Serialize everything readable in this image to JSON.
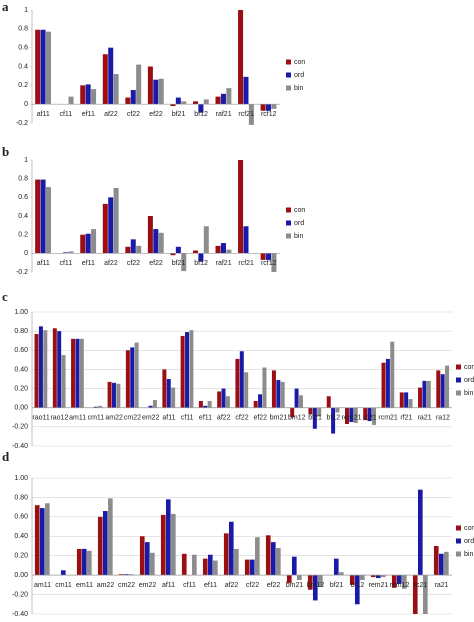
{
  "chart_data": [
    {
      "type": "bar",
      "label": "a",
      "categories": [
        "af11",
        "cf11",
        "ef11",
        "af22",
        "cf22",
        "ef22",
        "bf21",
        "bf12",
        "raf21",
        "rcf21",
        "rcf12"
      ],
      "series": [
        {
          "name": "con",
          "color": "#9b0f14",
          "values": [
            0.79,
            0,
            0.2,
            0.53,
            0.07,
            0.4,
            -0.02,
            0.03,
            0.08,
            1.0,
            -0.07
          ]
        },
        {
          "name": "ord",
          "color": "#1a1aa8",
          "values": [
            0.79,
            0,
            0.21,
            0.6,
            0.15,
            0.26,
            0.07,
            -0.09,
            0.11,
            0.29,
            -0.07
          ]
        },
        {
          "name": "bin",
          "color": "#8c8c8c",
          "values": [
            0.77,
            0.08,
            0.16,
            0.32,
            0.42,
            0.27,
            0.03,
            0.05,
            0.17,
            -0.22,
            -0.05
          ]
        }
      ],
      "ylim": [
        -0.2,
        1
      ],
      "yticks": [
        -0.2,
        0,
        0.2,
        0.4,
        0.6,
        0.8,
        1
      ],
      "grid": false
    },
    {
      "type": "bar",
      "label": "b",
      "categories": [
        "af11",
        "cf11",
        "ef11",
        "af22",
        "cf22",
        "ef22",
        "bf21",
        "bf12",
        "raf21",
        "rcf21",
        "rcf12"
      ],
      "series": [
        {
          "name": "con",
          "color": "#9b0f14",
          "values": [
            0.79,
            0,
            0.2,
            0.53,
            0.07,
            0.4,
            -0.02,
            0.03,
            0.08,
            1.0,
            -0.07
          ]
        },
        {
          "name": "ord",
          "color": "#1a1aa8",
          "values": [
            0.79,
            0.01,
            0.21,
            0.6,
            0.15,
            0.26,
            0.07,
            -0.09,
            0.11,
            0.29,
            -0.07
          ]
        },
        {
          "name": "bin",
          "color": "#8c8c8c",
          "values": [
            0.71,
            0.02,
            0.26,
            0.7,
            0.08,
            0.22,
            -0.19,
            0.29,
            0.04,
            0,
            -0.2
          ]
        }
      ],
      "ylim": [
        -0.2,
        1
      ],
      "yticks": [
        -0.2,
        0,
        0.2,
        0.4,
        0.6,
        0.8,
        1
      ],
      "grid": false
    },
    {
      "type": "bar",
      "label": "c",
      "categories": [
        "rao11",
        "rao12",
        "am11",
        "cm11",
        "am22",
        "cm22",
        "em22",
        "af11",
        "cf11",
        "ef11",
        "af22",
        "cf22",
        "ef22",
        "bm21",
        "bm12",
        "bf21",
        "bf12",
        "rem21",
        "rc21",
        "rcm21",
        "rf21",
        "ra21",
        "ra12"
      ],
      "series": [
        {
          "name": "con",
          "color": "#9b0f14",
          "values": [
            0.77,
            0.83,
            0.72,
            0,
            0.27,
            0.6,
            0,
            0.4,
            0.75,
            0.07,
            0.17,
            0.51,
            0.07,
            0.39,
            -0.1,
            -0.07,
            0.12,
            -0.17,
            -0.13,
            0.47,
            0.16,
            0.21,
            0.39
          ]
        },
        {
          "name": "ord",
          "color": "#1a1aa8",
          "values": [
            0.85,
            0.8,
            0.72,
            0.01,
            0.26,
            0.63,
            0.02,
            0.3,
            0.79,
            0.02,
            0.2,
            0.59,
            0.14,
            0.29,
            0.2,
            -0.22,
            -0.27,
            -0.15,
            -0.14,
            0.51,
            0.16,
            0.28,
            0.35
          ]
        },
        {
          "name": "bin",
          "color": "#8c8c8c",
          "values": [
            0.81,
            0.55,
            0.72,
            0.02,
            0.25,
            0.68,
            0.08,
            0.21,
            0.81,
            0.07,
            0.12,
            0.37,
            0.42,
            0.27,
            0.13,
            -0.09,
            -0.05,
            -0.16,
            -0.18,
            0.69,
            0.09,
            0.28,
            0.44
          ]
        }
      ],
      "ylim": [
        -0.4,
        1
      ],
      "yticks": [
        {
          "value": -0.4,
          "label": "-0.40"
        },
        {
          "value": -0.2,
          "label": "-0.20"
        },
        {
          "value": 0,
          "label": "0.00"
        },
        {
          "value": 0.2,
          "label": "0.20"
        },
        {
          "value": 0.4,
          "label": "0.40"
        },
        {
          "value": 0.6,
          "label": "0.60"
        },
        {
          "value": 0.8,
          "label": "0.80"
        },
        {
          "value": 1,
          "label": "1.00"
        }
      ],
      "grid": true
    },
    {
      "type": "bar",
      "label": "d",
      "categories": [
        "am11",
        "cm11",
        "em11",
        "am22",
        "cm22",
        "em22",
        "af11",
        "cf11",
        "ef11",
        "af22",
        "cf22",
        "ef22",
        "bm21",
        "bm12",
        "bf21",
        "bf12",
        "rem21",
        "rem12",
        "rc21",
        "ra21"
      ],
      "series": [
        {
          "name": "con",
          "color": "#9b0f14",
          "values": [
            0.72,
            0,
            0.27,
            0.6,
            0.01,
            0.4,
            0.62,
            0.22,
            0.17,
            0.43,
            0.16,
            0.41,
            -0.08,
            -0.15,
            0,
            -0.1,
            -0.02,
            -0.13,
            -0.4,
            0.3
          ]
        },
        {
          "name": "ord",
          "color": "#1a1aa8",
          "values": [
            0.69,
            0.05,
            0.27,
            0.66,
            0.01,
            0.34,
            0.78,
            0,
            0.21,
            0.55,
            0.16,
            0.34,
            0.19,
            -0.26,
            0.17,
            -0.3,
            -0.03,
            -0.09,
            0.88,
            0.22
          ]
        },
        {
          "name": "bin",
          "color": "#8c8c8c",
          "values": [
            0.74,
            0,
            0.25,
            0.79,
            0.01,
            0.23,
            0.63,
            0.21,
            0.15,
            0.27,
            0.39,
            0.28,
            -0.05,
            -0.12,
            0.03,
            -0.05,
            -0.02,
            -0.14,
            -0.4,
            0.24
          ]
        }
      ],
      "ylim": [
        -0.4,
        1
      ],
      "yticks": [
        {
          "value": -0.4,
          "label": "-0.40"
        },
        {
          "value": -0.2,
          "label": "-0.20"
        },
        {
          "value": 0,
          "label": "0.00"
        },
        {
          "value": 0.2,
          "label": "0.20"
        },
        {
          "value": 0.4,
          "label": "0.40"
        },
        {
          "value": 0.6,
          "label": "0.60"
        },
        {
          "value": 0.8,
          "label": "0.80"
        },
        {
          "value": 1,
          "label": "1.00"
        }
      ],
      "grid": true
    }
  ]
}
